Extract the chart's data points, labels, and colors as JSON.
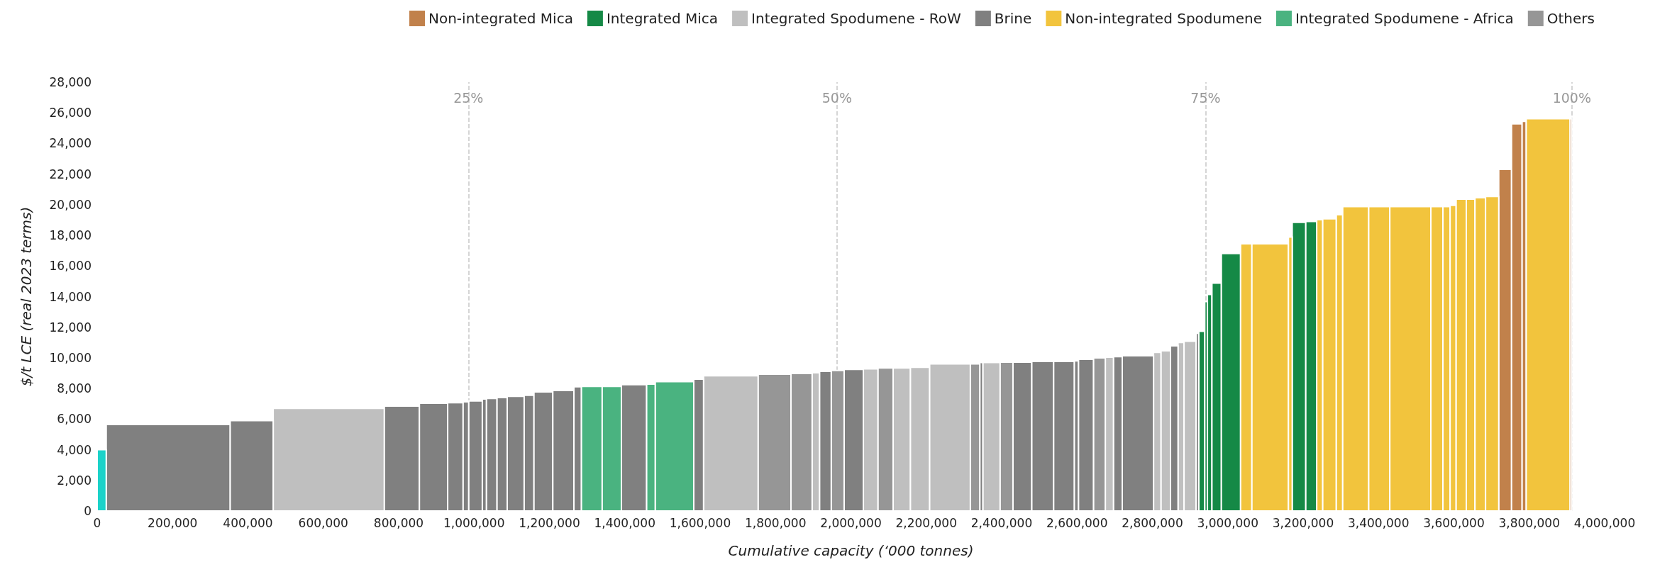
{
  "chart_data": {
    "type": "histogram",
    "xlabel": "Cumulative capacity (‘000 tonnes)",
    "ylabel": "$/t LCE (real 2023 terms)",
    "legend": "top",
    "xlim": [
      0,
      4000000
    ],
    "ylim": [
      0,
      28000
    ],
    "xticks": [
      {
        "value": 0,
        "label": "0"
      },
      {
        "value": 200000,
        "label": "200,000"
      },
      {
        "value": 400000,
        "label": "400,000"
      },
      {
        "value": 600000,
        "label": "600,000"
      },
      {
        "value": 800000,
        "label": "800,000"
      },
      {
        "value": 1000000,
        "label": "1,000,000"
      },
      {
        "value": 1200000,
        "label": "1,200,000"
      },
      {
        "value": 1400000,
        "label": "1,400,000"
      },
      {
        "value": 1600000,
        "label": "1,600,000"
      },
      {
        "value": 1800000,
        "label": "1,800,000"
      },
      {
        "value": 2000000,
        "label": "2,000,000"
      },
      {
        "value": 2200000,
        "label": "2,200,000"
      },
      {
        "value": 2400000,
        "label": "2,400,000"
      },
      {
        "value": 2600000,
        "label": "2,600,000"
      },
      {
        "value": 2800000,
        "label": "2,800,000"
      },
      {
        "value": 3000000,
        "label": "3,000,000"
      },
      {
        "value": 3200000,
        "label": "3,200,000"
      },
      {
        "value": 3400000,
        "label": "3,400,000"
      },
      {
        "value": 3600000,
        "label": "3,600,000"
      },
      {
        "value": 3800000,
        "label": "3,800,000"
      },
      {
        "value": 4000000,
        "label": "4,000,000"
      }
    ],
    "yticks": [
      {
        "value": 0,
        "label": "0"
      },
      {
        "value": 2000,
        "label": "2,000"
      },
      {
        "value": 4000,
        "label": "4,000"
      },
      {
        "value": 6000,
        "label": "6,000"
      },
      {
        "value": 8000,
        "label": "8,000"
      },
      {
        "value": 10000,
        "label": "10,000"
      },
      {
        "value": 12000,
        "label": "12,000"
      },
      {
        "value": 14000,
        "label": "14,000"
      },
      {
        "value": 16000,
        "label": "16,000"
      },
      {
        "value": 18000,
        "label": "18,000"
      },
      {
        "value": 20000,
        "label": "20,000"
      },
      {
        "value": 22000,
        "label": "22,000"
      },
      {
        "value": 24000,
        "label": "24,000"
      },
      {
        "value": 26000,
        "label": "26,000"
      },
      {
        "value": 28000,
        "label": "28,000"
      }
    ],
    "ref_lines": [
      {
        "axis": "x",
        "value": 985000,
        "color": "#c8c8c8",
        "line_style": "dashed"
      },
      {
        "axis": "x",
        "value": 1963000,
        "color": "#c8c8c8",
        "line_style": "dashed"
      },
      {
        "axis": "x",
        "value": 2941000,
        "color": "#c8c8c8",
        "line_style": "dashed"
      },
      {
        "axis": "x",
        "value": 3913000,
        "color": "#c8c8c8",
        "line_style": "dashed"
      }
    ],
    "annotations": [
      {
        "text": "25%",
        "x": 985000,
        "y": 27000
      },
      {
        "text": "50%",
        "x": 1963000,
        "y": 27000
      },
      {
        "text": "75%",
        "x": 2941000,
        "y": 27000
      },
      {
        "text": "100%",
        "x": 3913000,
        "y": 27000
      }
    ],
    "bins": [
      0,
      24000,
      353000,
      467000,
      762000,
      855000,
      930000,
      971000,
      986000,
      1022000,
      1033000,
      1061000,
      1088000,
      1133000,
      1159000,
      1209000,
      1265000,
      1285000,
      1340000,
      1391000,
      1458000,
      1481000,
      1583000,
      1609000,
      1754000,
      1841000,
      1897000,
      1917000,
      1948000,
      1982000,
      2033000,
      2072000,
      2112000,
      2158000,
      2209000,
      2317000,
      2342000,
      2350000,
      2396000,
      2430000,
      2480000,
      2538000,
      2593000,
      2604000,
      2644000,
      2675000,
      2697000,
      2720000,
      2803000,
      2823000,
      2848000,
      2868000,
      2884000,
      2916000,
      2923000,
      2939000,
      2946000,
      2958000,
      2983000,
      3034000,
      3064000,
      3161000,
      3171000,
      3207000,
      3236000,
      3252000,
      3288000,
      3305000,
      3374000,
      3430000,
      3539000,
      3571000,
      3590000,
      3606000,
      3633000,
      3656000,
      3684000,
      3719000,
      3753000,
      3781000,
      3792000,
      3908000,
      3913000
    ],
    "series": [
      {
        "name": "Non-integrated Mica",
        "color": "#c1814b",
        "values": [
          null,
          null,
          null,
          null,
          null,
          null,
          null,
          null,
          null,
          null,
          null,
          null,
          null,
          null,
          null,
          null,
          null,
          null,
          null,
          null,
          null,
          null,
          null,
          null,
          null,
          null,
          null,
          null,
          null,
          null,
          null,
          null,
          null,
          null,
          null,
          null,
          null,
          null,
          null,
          null,
          null,
          null,
          null,
          null,
          null,
          null,
          null,
          null,
          null,
          null,
          null,
          null,
          null,
          null,
          null,
          null,
          null,
          null,
          null,
          null,
          null,
          null,
          null,
          null,
          null,
          null,
          null,
          null,
          null,
          null,
          null,
          null,
          null,
          null,
          null,
          null,
          null,
          22310,
          25280,
          25440,
          null,
          25620
        ]
      },
      {
        "name": "Integrated Mica",
        "color": "#158946",
        "values": [
          null,
          null,
          null,
          null,
          null,
          null,
          null,
          null,
          null,
          null,
          null,
          null,
          null,
          null,
          null,
          null,
          null,
          null,
          null,
          null,
          null,
          null,
          null,
          null,
          null,
          null,
          null,
          null,
          null,
          null,
          null,
          null,
          null,
          null,
          null,
          null,
          null,
          null,
          null,
          null,
          null,
          null,
          null,
          null,
          null,
          null,
          null,
          null,
          null,
          null,
          null,
          null,
          null,
          null,
          11730,
          13680,
          14140,
          14880,
          16810,
          null,
          null,
          null,
          18850,
          18910,
          null,
          null,
          null,
          null,
          null,
          null,
          null,
          null,
          null,
          null,
          null,
          null,
          null,
          null,
          null,
          null,
          null,
          null
        ]
      },
      {
        "name": "Integrated Spodumene - RoW",
        "color": "#bfbfbf",
        "values": [
          null,
          null,
          null,
          6700,
          null,
          null,
          null,
          null,
          null,
          null,
          null,
          null,
          null,
          null,
          null,
          null,
          null,
          null,
          null,
          null,
          null,
          null,
          null,
          8830,
          null,
          null,
          9020,
          null,
          null,
          null,
          9280,
          null,
          9340,
          9380,
          9600,
          null,
          null,
          9700,
          null,
          null,
          null,
          null,
          null,
          null,
          null,
          10040,
          null,
          null,
          10360,
          10460,
          null,
          11000,
          11080,
          null,
          null,
          null,
          null,
          null,
          null,
          null,
          null,
          null,
          null,
          null,
          null,
          null,
          null,
          null,
          null,
          null,
          null,
          null,
          null,
          null,
          null,
          null,
          null,
          null,
          null,
          null,
          null,
          null
        ]
      },
      {
        "name": "Brine",
        "color": "#808080",
        "values": [
          null,
          5650,
          5900,
          null,
          6850,
          7030,
          7070,
          7130,
          7190,
          7310,
          7350,
          7410,
          7490,
          7550,
          7770,
          7870,
          8110,
          null,
          null,
          8250,
          null,
          null,
          8610,
          null,
          null,
          null,
          null,
          9120,
          null,
          9240,
          null,
          null,
          null,
          null,
          null,
          null,
          9700,
          null,
          null,
          9720,
          9760,
          9760,
          9800,
          9900,
          null,
          null,
          10080,
          10140,
          null,
          null,
          10780,
          null,
          null,
          11600,
          null,
          null,
          null,
          null,
          null,
          null,
          null,
          null,
          null,
          null,
          null,
          null,
          null,
          null,
          null,
          null,
          null,
          null,
          null,
          null,
          null,
          null,
          null,
          null,
          null,
          null,
          null,
          null
        ]
      },
      {
        "name": "Non-integrated Spodumene",
        "color": "#f2c43d",
        "values": [
          null,
          null,
          null,
          null,
          null,
          null,
          null,
          null,
          null,
          null,
          null,
          null,
          null,
          null,
          null,
          null,
          null,
          null,
          null,
          null,
          null,
          null,
          null,
          null,
          null,
          null,
          null,
          null,
          null,
          null,
          null,
          null,
          null,
          null,
          null,
          null,
          null,
          null,
          null,
          null,
          null,
          null,
          null,
          null,
          null,
          null,
          null,
          null,
          null,
          null,
          null,
          null,
          null,
          null,
          null,
          null,
          null,
          null,
          null,
          17450,
          17450,
          17890,
          null,
          null,
          19020,
          19080,
          19340,
          19880,
          19880,
          19880,
          19880,
          19880,
          19960,
          20360,
          20360,
          20460,
          20540,
          null,
          null,
          null,
          25620,
          null
        ]
      },
      {
        "name": "Integrated Spodumene - Africa",
        "color": "#4ab380",
        "values": [
          null,
          null,
          null,
          null,
          null,
          null,
          null,
          null,
          null,
          null,
          null,
          null,
          null,
          null,
          null,
          null,
          null,
          8130,
          8130,
          null,
          8290,
          8450,
          null,
          null,
          null,
          null,
          null,
          null,
          null,
          null,
          null,
          null,
          null,
          null,
          null,
          null,
          null,
          null,
          null,
          null,
          null,
          null,
          null,
          null,
          null,
          null,
          null,
          null,
          null,
          null,
          null,
          null,
          null,
          null,
          null,
          null,
          null,
          null,
          null,
          null,
          null,
          null,
          null,
          null,
          null,
          null,
          null,
          null,
          null,
          null,
          null,
          null,
          null,
          null,
          null,
          null,
          null,
          null,
          null,
          null,
          null,
          null
        ]
      },
      {
        "name": "Others",
        "color": "#969696",
        "values": [
          null,
          null,
          null,
          null,
          null,
          null,
          null,
          null,
          null,
          null,
          null,
          null,
          null,
          null,
          null,
          null,
          null,
          null,
          null,
          null,
          null,
          null,
          null,
          null,
          8930,
          8980,
          null,
          null,
          9180,
          null,
          null,
          9340,
          null,
          null,
          null,
          9600,
          null,
          null,
          9720,
          null,
          null,
          null,
          null,
          null,
          10000,
          null,
          null,
          null,
          null,
          null,
          null,
          null,
          null,
          null,
          null,
          null,
          null,
          null,
          null,
          null,
          null,
          null,
          null,
          null,
          null,
          null,
          null,
          null,
          null,
          null,
          null,
          null,
          null,
          null,
          null,
          null,
          null,
          null,
          null,
          null,
          null,
          null
        ]
      },
      {
        "color": "#1bd2c9",
        "values": [
          4000,
          null,
          null,
          null,
          null,
          null,
          null,
          null,
          null,
          null,
          null,
          null,
          null,
          null,
          null,
          null,
          null,
          null,
          null,
          null,
          null,
          null,
          null,
          null,
          null,
          null,
          null,
          null,
          null,
          null,
          null,
          null,
          null,
          null,
          null,
          null,
          null,
          null,
          null,
          null,
          null,
          null,
          null,
          null,
          null,
          null,
          null,
          null,
          null,
          null,
          null,
          null,
          null,
          null,
          null,
          null,
          null,
          null,
          null,
          null,
          null,
          null,
          null,
          null,
          null,
          null,
          null,
          null,
          null,
          null,
          null,
          null,
          null,
          null,
          null,
          null,
          null,
          null,
          null,
          null,
          null,
          null
        ]
      }
    ]
  }
}
